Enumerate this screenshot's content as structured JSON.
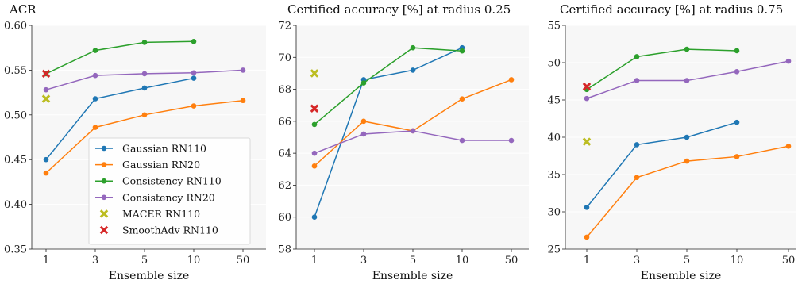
{
  "chart_data": [
    {
      "type": "line",
      "title": "ACR",
      "xlabel": "Ensemble size",
      "ylabel": "",
      "x": [
        "1",
        "3",
        "5",
        "10",
        "50"
      ],
      "yticks": [
        "0.35",
        "0.40",
        "0.45",
        "0.50",
        "0.55",
        "0.60"
      ],
      "ylim": [
        0.35,
        0.6
      ],
      "grid": true,
      "legend": "lower-right",
      "series": [
        {
          "name": "Gaussian RN110",
          "color": "#1f77b4",
          "marker": "circle",
          "points": [
            [
              0,
              0.45
            ],
            [
              1,
              0.518
            ],
            [
              2,
              0.53
            ],
            [
              3,
              0.541
            ]
          ]
        },
        {
          "name": "Gaussian RN20",
          "color": "#ff7f0e",
          "marker": "circle",
          "points": [
            [
              0,
              0.435
            ],
            [
              1,
              0.486
            ],
            [
              2,
              0.5
            ],
            [
              3,
              0.51
            ],
            [
              4,
              0.516
            ]
          ]
        },
        {
          "name": "Consistency RN110",
          "color": "#2ca02c",
          "marker": "circle",
          "points": [
            [
              0,
              0.546
            ],
            [
              1,
              0.572
            ],
            [
              2,
              0.581
            ],
            [
              3,
              0.582
            ]
          ]
        },
        {
          "name": "Consistency RN20",
          "color": "#9467bd",
          "marker": "circle",
          "points": [
            [
              0,
              0.528
            ],
            [
              1,
              0.544
            ],
            [
              2,
              0.546
            ],
            [
              3,
              0.547
            ],
            [
              4,
              0.55
            ]
          ]
        },
        {
          "name": "MACER RN110",
          "color": "#bcbd22",
          "marker": "x",
          "points": [
            [
              0,
              0.518
            ]
          ]
        },
        {
          "name": "SmoothAdv RN110",
          "color": "#d62728",
          "marker": "x",
          "points": [
            [
              0,
              0.546
            ]
          ]
        }
      ]
    },
    {
      "type": "line",
      "title": "Certified accuracy [%] at radius 0.25",
      "xlabel": "Ensemble size",
      "ylabel": "",
      "x": [
        "1",
        "3",
        "5",
        "10",
        "50"
      ],
      "yticks": [
        "58",
        "60",
        "62",
        "64",
        "66",
        "68",
        "70",
        "72"
      ],
      "ylim": [
        58,
        72
      ],
      "grid": true,
      "series": [
        {
          "name": "Gaussian RN110",
          "color": "#1f77b4",
          "marker": "circle",
          "points": [
            [
              0,
              60.0
            ],
            [
              1,
              68.6
            ],
            [
              2,
              69.2
            ],
            [
              3,
              70.6
            ]
          ]
        },
        {
          "name": "Gaussian RN20",
          "color": "#ff7f0e",
          "marker": "circle",
          "points": [
            [
              0,
              63.2
            ],
            [
              1,
              66.0
            ],
            [
              2,
              65.4
            ],
            [
              3,
              67.4
            ],
            [
              4,
              68.6
            ]
          ]
        },
        {
          "name": "Consistency RN110",
          "color": "#2ca02c",
          "marker": "circle",
          "points": [
            [
              0,
              65.8
            ],
            [
              1,
              68.4
            ],
            [
              2,
              70.6
            ],
            [
              3,
              70.4
            ]
          ]
        },
        {
          "name": "Consistency RN20",
          "color": "#9467bd",
          "marker": "circle",
          "points": [
            [
              0,
              64.0
            ],
            [
              1,
              65.2
            ],
            [
              2,
              65.4
            ],
            [
              3,
              64.8
            ],
            [
              4,
              64.8
            ]
          ]
        },
        {
          "name": "MACER RN110",
          "color": "#bcbd22",
          "marker": "x",
          "points": [
            [
              0,
              69.0
            ]
          ]
        },
        {
          "name": "SmoothAdv RN110",
          "color": "#d62728",
          "marker": "x",
          "points": [
            [
              0,
              66.8
            ]
          ]
        }
      ]
    },
    {
      "type": "line",
      "title": "Certified accuracy [%] at radius 0.75",
      "xlabel": "Ensemble size",
      "ylabel": "",
      "x": [
        "1",
        "3",
        "5",
        "10",
        "50"
      ],
      "yticks": [
        "25",
        "30",
        "35",
        "40",
        "45",
        "50",
        "55"
      ],
      "ylim": [
        25,
        55
      ],
      "grid": true,
      "series": [
        {
          "name": "Gaussian RN110",
          "color": "#1f77b4",
          "marker": "circle",
          "points": [
            [
              0,
              30.6
            ],
            [
              1,
              39.0
            ],
            [
              2,
              40.0
            ],
            [
              3,
              42.0
            ]
          ]
        },
        {
          "name": "Gaussian RN20",
          "color": "#ff7f0e",
          "marker": "circle",
          "points": [
            [
              0,
              26.6
            ],
            [
              1,
              34.6
            ],
            [
              2,
              36.8
            ],
            [
              3,
              37.4
            ],
            [
              4,
              38.8
            ]
          ]
        },
        {
          "name": "Consistency RN110",
          "color": "#2ca02c",
          "marker": "circle",
          "points": [
            [
              0,
              46.4
            ],
            [
              1,
              50.8
            ],
            [
              2,
              51.8
            ],
            [
              3,
              51.6
            ]
          ]
        },
        {
          "name": "Consistency RN20",
          "color": "#9467bd",
          "marker": "circle",
          "points": [
            [
              0,
              45.2
            ],
            [
              1,
              47.6
            ],
            [
              2,
              47.6
            ],
            [
              3,
              48.8
            ],
            [
              4,
              50.2
            ]
          ]
        },
        {
          "name": "MACER RN110",
          "color": "#bcbd22",
          "marker": "x",
          "points": [
            [
              0,
              39.4
            ]
          ]
        },
        {
          "name": "SmoothAdv RN110",
          "color": "#d62728",
          "marker": "x",
          "points": [
            [
              0,
              46.8
            ]
          ]
        }
      ]
    }
  ]
}
